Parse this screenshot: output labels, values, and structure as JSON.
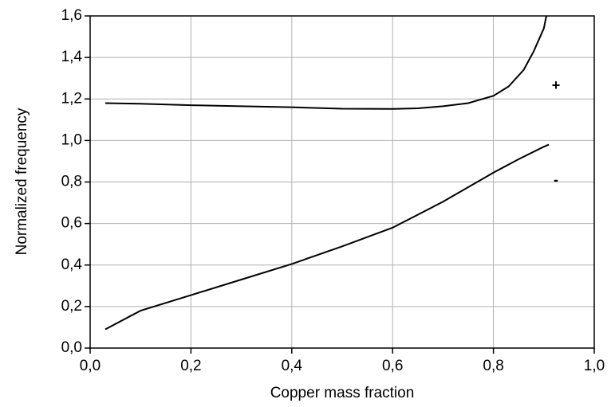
{
  "chart_data": {
    "type": "line",
    "x_label": "Copper mass fraction",
    "y_label": "Normalized frequency",
    "xlim": [
      0,
      1
    ],
    "ylim": [
      0,
      1.6
    ],
    "xticks": [
      {
        "value": 0,
        "label": "0,0"
      },
      {
        "value": 0.2,
        "label": "0,2"
      },
      {
        "value": 0.4,
        "label": "0,4"
      },
      {
        "value": 0.6,
        "label": "0,6"
      },
      {
        "value": 0.8,
        "label": "0,8"
      },
      {
        "value": 1,
        "label": "1,0"
      }
    ],
    "yticks": [
      {
        "value": 0,
        "label": "0,0"
      },
      {
        "value": 0.2,
        "label": "0,2"
      },
      {
        "value": 0.4,
        "label": "0,4"
      },
      {
        "value": 0.6,
        "label": "0,6"
      },
      {
        "value": 0.8,
        "label": "0,8"
      },
      {
        "value": 1,
        "label": "1,0"
      },
      {
        "value": 1.2,
        "label": "1,2"
      },
      {
        "value": 1.4,
        "label": "1,4"
      },
      {
        "value": 1.6,
        "label": "1,6"
      }
    ],
    "grid": true,
    "series": [
      {
        "name": "+",
        "color": "#000000",
        "x": [
          0.03,
          0.1,
          0.2,
          0.3,
          0.4,
          0.5,
          0.6,
          0.65,
          0.7,
          0.75,
          0.8,
          0.83,
          0.86,
          0.88,
          0.9,
          0.905
        ],
        "values": [
          1.18,
          1.177,
          1.17,
          1.165,
          1.16,
          1.153,
          1.152,
          1.155,
          1.165,
          1.18,
          1.215,
          1.26,
          1.34,
          1.43,
          1.54,
          1.6
        ]
      },
      {
        "name": "-",
        "color": "#000000",
        "x": [
          0.03,
          0.1,
          0.2,
          0.3,
          0.4,
          0.5,
          0.6,
          0.7,
          0.8,
          0.85,
          0.9,
          0.91
        ],
        "values": [
          0.09,
          0.18,
          0.255,
          0.33,
          0.405,
          0.49,
          0.58,
          0.705,
          0.845,
          0.91,
          0.97,
          0.98
        ]
      }
    ]
  }
}
